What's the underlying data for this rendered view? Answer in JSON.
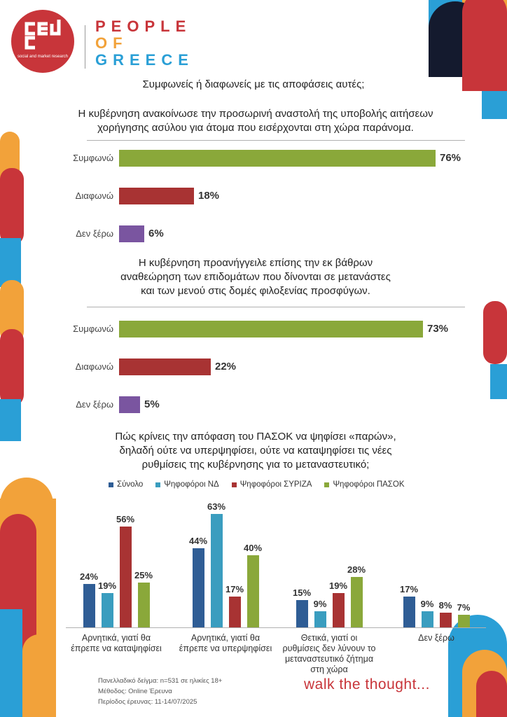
{
  "header": {
    "logo_sub": "social and market research",
    "brand_line1": "PEOPLE",
    "brand_line2": "OF",
    "brand_line3": "GREECE"
  },
  "main_question": "Συμφωνείς ή διαφωνείς με τις αποφάσεις αυτές;",
  "question1": {
    "line1": "Η κυβέρνηση ανακοίνωσε την προσωρινή αναστολή της υποβολής αιτήσεων",
    "line2": "χορήγησης ασύλου για άτομα που εισέρχονται στη χώρα παράνομα."
  },
  "question2": {
    "line1": "Η κυβέρνηση προανήγγειλε επίσης την εκ βάθρων",
    "line2": "αναθεώρηση των επιδομάτων που δίνονται σε μετανάστες",
    "line3": "και των μενού στις δομές φιλοξενίας προσφύγων."
  },
  "question3": {
    "line1": "Πώς κρίνεις την απόφαση του ΠΑΣΟΚ να ψηφίσει «παρών»,",
    "line2": "δηλαδή ούτε να υπερψηφίσει, ούτε να καταψηφίσει τις νέες",
    "line3": "ρυθμίσεις της κυβέρνησης για το μεταναστευτικό;"
  },
  "colors": {
    "green": "#8aa83a",
    "red": "#a83333",
    "purple": "#7a55a0",
    "blue": "#2f5d95",
    "teal": "#3a9dbf"
  },
  "chart_data": [
    {
      "type": "bar",
      "orientation": "horizontal",
      "categories": [
        "Συμφωνώ",
        "Διαφωνώ",
        "Δεν ξέρω"
      ],
      "values": [
        76,
        18,
        6
      ],
      "value_labels": [
        "76%",
        "18%",
        "6%"
      ],
      "colors": [
        "#8aa83a",
        "#a83333",
        "#7a55a0"
      ],
      "xlim": [
        0,
        76
      ]
    },
    {
      "type": "bar",
      "orientation": "horizontal",
      "categories": [
        "Συμφωνώ",
        "Διαφωνώ",
        "Δεν ξέρω"
      ],
      "values": [
        73,
        22,
        5
      ],
      "value_labels": [
        "73%",
        "22%",
        "5%"
      ],
      "colors": [
        "#8aa83a",
        "#a83333",
        "#7a55a0"
      ],
      "xlim": [
        0,
        76
      ]
    },
    {
      "type": "bar",
      "orientation": "vertical",
      "categories": [
        [
          "Αρνητικά, γιατί θα",
          "έπρεπε να καταψηφίσει"
        ],
        [
          "Αρνητικά, γιατί θα",
          "έπρεπε να υπερψηφίσει"
        ],
        [
          "Θετικά, γιατί οι",
          "ρυθμίσεις δεν λύνουν το",
          "μεταναστευτικό ζήτημα",
          "στη χώρα"
        ],
        [
          "Δεν ξέρω"
        ]
      ],
      "series": [
        {
          "name": "Σύνολο",
          "color": "#2f5d95",
          "values": [
            24,
            44,
            15,
            17
          ],
          "labels": [
            "24%",
            "44%",
            "15%",
            "17%"
          ]
        },
        {
          "name": "Ψηφοφόροι ΝΔ",
          "color": "#3a9dbf",
          "values": [
            19,
            63,
            9,
            9
          ],
          "labels": [
            "19%",
            "63%",
            "9%",
            "9%"
          ]
        },
        {
          "name": "Ψηφοφόροι ΣΥΡΙΖΑ",
          "color": "#a83333",
          "values": [
            56,
            17,
            19,
            8
          ],
          "labels": [
            "56%",
            "17%",
            "19%",
            "8%"
          ]
        },
        {
          "name": "Ψηφοφόροι ΠΑΣΟΚ",
          "color": "#8aa83a",
          "values": [
            25,
            40,
            28,
            7
          ],
          "labels": [
            "25%",
            "40%",
            "28%",
            "7%"
          ]
        }
      ],
      "legend": "top",
      "ylim": [
        0,
        63
      ]
    }
  ],
  "footer": {
    "line1": "Πανελλαδικό δείγμα: n=531 σε ηλικίες 18+",
    "line2": "Μέθοδος: Online Έρευνα",
    "line3": "Περίοδος έρευνας: 11-14/07/2025",
    "tagline": "walk the thought..."
  }
}
